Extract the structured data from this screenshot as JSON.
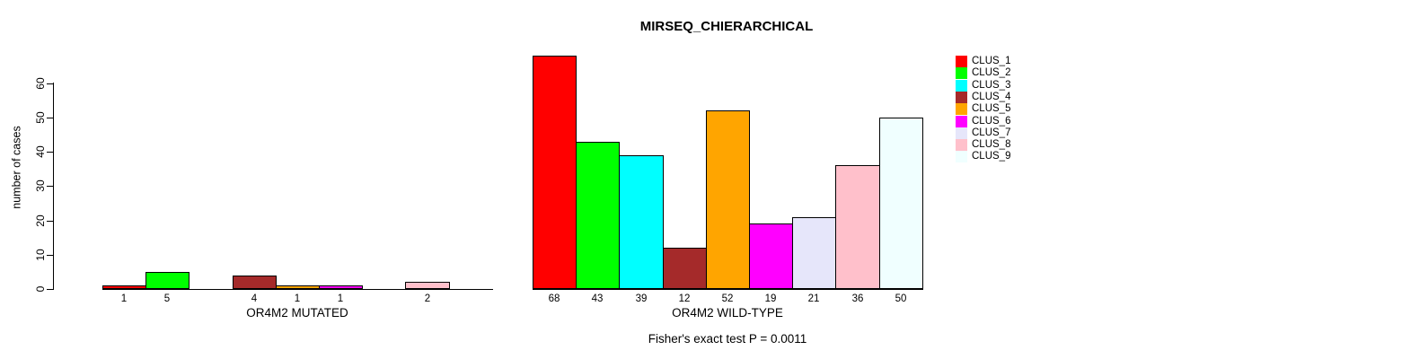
{
  "chart_data": {
    "type": "bar",
    "title": "MIRSEQ_CHIERARCHICAL",
    "ylabel": "number of cases",
    "ylim": [
      0,
      60
    ],
    "yticks": [
      0,
      10,
      20,
      30,
      40,
      50,
      60
    ],
    "grid": false,
    "legend_position": "right",
    "legend": [
      {
        "label": "CLUS_1",
        "color": "#FF0000"
      },
      {
        "label": "CLUS_2",
        "color": "#00FF00"
      },
      {
        "label": "CLUS_3",
        "color": "#00FFFF"
      },
      {
        "label": "CLUS_4",
        "color": "#A52A2A"
      },
      {
        "label": "CLUS_5",
        "color": "#FFA500"
      },
      {
        "label": "CLUS_6",
        "color": "#FF00FF"
      },
      {
        "label": "CLUS_7",
        "color": "#E6E6FA"
      },
      {
        "label": "CLUS_8",
        "color": "#FFC0CB"
      },
      {
        "label": "CLUS_9",
        "color": "#F0FFFF"
      }
    ],
    "categories": [
      "CLUS_1",
      "CLUS_2",
      "CLUS_3",
      "CLUS_4",
      "CLUS_5",
      "CLUS_6",
      "CLUS_7",
      "CLUS_8",
      "CLUS_9"
    ],
    "panels": [
      {
        "xlabel": "OR4M2 MUTATED",
        "values": [
          1,
          5,
          0,
          4,
          1,
          1,
          0,
          2,
          0
        ],
        "bar_labels": [
          "1",
          "5",
          "",
          "4",
          "1",
          "1",
          "",
          "2",
          ""
        ]
      },
      {
        "xlabel": "OR4M2 WILD-TYPE",
        "values": [
          68,
          43,
          39,
          12,
          52,
          19,
          21,
          36,
          50
        ],
        "bar_labels": [
          "68",
          "43",
          "39",
          "12",
          "52",
          "19",
          "21",
          "36",
          "50"
        ]
      }
    ],
    "annotation": "Fisher's exact test P = 0.0011"
  }
}
